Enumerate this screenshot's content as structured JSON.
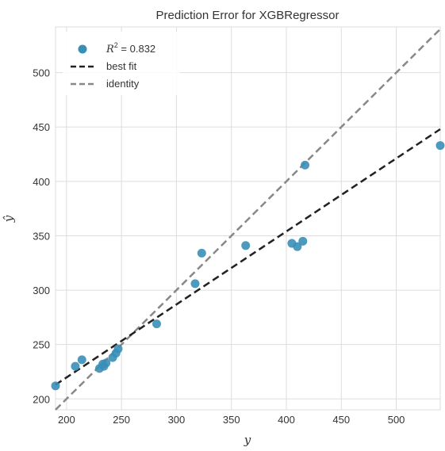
{
  "chart_data": {
    "type": "scatter",
    "title": "Prediction Error for XGBRegressor",
    "xlabel": "y",
    "ylabel": "ŷ",
    "xlim": [
      190,
      540
    ],
    "ylim": [
      190,
      542
    ],
    "x_ticks": [
      200,
      250,
      300,
      350,
      400,
      450,
      500
    ],
    "y_ticks": [
      200,
      250,
      300,
      350,
      400,
      450,
      500
    ],
    "grid": true,
    "legend_position": "top-left",
    "colors": {
      "points": "#3a8fb7",
      "best_fit": "#222222",
      "identity": "#888888",
      "grid": "#dddddd",
      "frame": "#dddddd"
    },
    "series": [
      {
        "name": "R² = 0.832",
        "legend_prefix": "R",
        "legend_sup": "2",
        "legend_suffix": " = 0.832",
        "kind": "points",
        "x": [
          190,
          208,
          214,
          230,
          233,
          234,
          236,
          242,
          245,
          247,
          282,
          317,
          323,
          363,
          405,
          410,
          415,
          417,
          540
        ],
        "y": [
          212,
          230,
          236,
          228,
          232,
          230,
          233,
          238,
          242,
          246,
          269,
          306,
          334,
          341,
          343,
          340,
          345,
          415,
          433
        ]
      },
      {
        "name": "best fit",
        "kind": "line",
        "style": "dashed",
        "x": [
          190,
          540
        ],
        "y": [
          213,
          448
        ]
      },
      {
        "name": "identity",
        "kind": "line",
        "style": "dashed",
        "x": [
          190,
          540
        ],
        "y": [
          190,
          540
        ]
      }
    ]
  }
}
